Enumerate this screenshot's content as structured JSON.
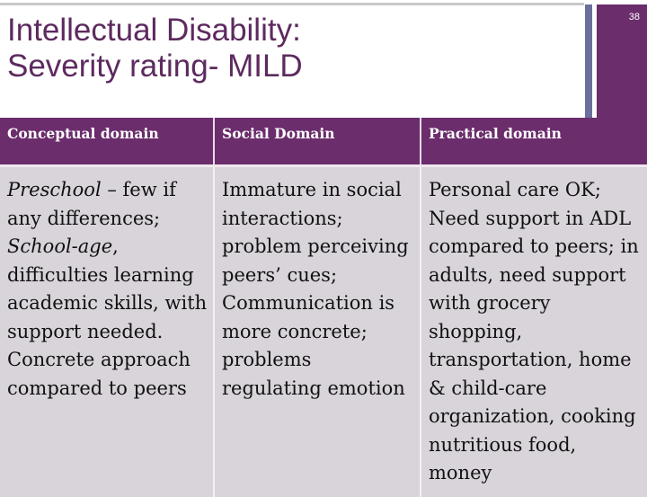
{
  "slide": {
    "title_line1": "Intellectual Disability:",
    "title_line2": "Severity rating- MILD",
    "slide_number": "38",
    "colors": {
      "accent": "#6b2d6c",
      "title": "#5d2a5f",
      "cell_bg": "#d8d4da",
      "bar": "#6a6f9e"
    }
  },
  "table": {
    "headers": [
      "Conceptual domain",
      "Social Domain",
      "Practical domain"
    ],
    "conceptual": {
      "italic1": "Preschool",
      "text1": " – few if any differences; ",
      "italic2": "School-age",
      "text2": ", difficulties learning academic skills, with support needed. Concrete approach compared to peers"
    },
    "social": "Immature in social interactions; problem perceiving peers’ cues; Communication is more concrete; problems regulating emotion",
    "practical": "Personal care OK; Need support in ADL compared to peers; in adults, need support with grocery shopping, transportation, home & child-care organization, cooking nutritious food, money"
  }
}
